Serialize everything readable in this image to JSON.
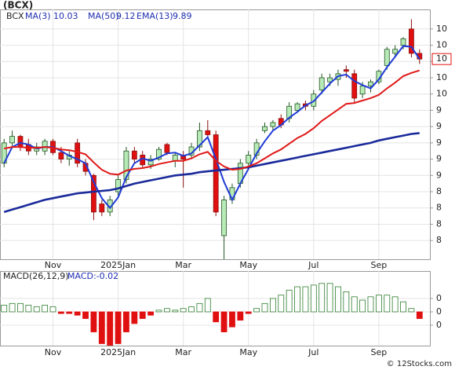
{
  "chart_data": [
    {
      "type": "candlestick",
      "title": "(BCX)",
      "ticker": "BCX",
      "categories": [
        null,
        null,
        null,
        null,
        null,
        null,
        "Nov",
        null,
        null,
        null,
        null,
        null,
        null,
        null,
        "2025Jan",
        null,
        null,
        null,
        null,
        null,
        null,
        null,
        "Mar",
        null,
        null,
        null,
        null,
        null,
        null,
        null,
        "May",
        null,
        null,
        null,
        null,
        null,
        null,
        null,
        "Jul",
        null,
        null,
        null,
        null,
        null,
        null,
        null,
        "Sep",
        null,
        null,
        null,
        null,
        null
      ],
      "open": [
        8.75,
        9.0,
        9.08,
        8.98,
        8.9,
        8.9,
        9.02,
        8.88,
        8.8,
        9.0,
        8.75,
        8.6,
        8.25,
        8.15,
        8.4,
        8.55,
        8.9,
        8.85,
        8.73,
        8.8,
        8.98,
        8.78,
        8.85,
        8.85,
        8.95,
        9.15,
        9.1,
        7.86,
        8.3,
        8.5,
        8.75,
        8.85,
        9.15,
        9.2,
        9.3,
        9.3,
        9.4,
        9.48,
        9.45,
        9.65,
        9.75,
        9.78,
        9.9,
        9.85,
        9.6,
        9.7,
        9.75,
        9.95,
        10.1,
        10.2,
        10.4,
        10.1
      ],
      "high": [
        9.05,
        9.15,
        9.1,
        9.05,
        9.0,
        9.05,
        9.05,
        8.95,
        8.9,
        9.05,
        8.8,
        8.62,
        8.3,
        8.35,
        8.6,
        8.95,
        8.95,
        8.9,
        8.85,
        8.95,
        9.0,
        8.88,
        8.9,
        9.0,
        9.25,
        9.28,
        9.15,
        8.35,
        8.5,
        8.8,
        8.9,
        9.05,
        9.25,
        9.28,
        9.35,
        9.5,
        9.5,
        9.52,
        9.65,
        9.85,
        9.85,
        9.9,
        9.95,
        9.9,
        9.75,
        9.78,
        9.9,
        10.18,
        10.2,
        10.3,
        10.52,
        10.15
      ],
      "low": [
        8.7,
        8.95,
        8.9,
        8.85,
        8.85,
        8.85,
        8.85,
        8.75,
        8.72,
        8.7,
        8.6,
        8.05,
        8.1,
        8.1,
        8.35,
        8.5,
        8.75,
        8.7,
        8.68,
        8.78,
        8.85,
        8.7,
        8.45,
        8.8,
        8.9,
        9.05,
        8.1,
        7.57,
        8.25,
        8.45,
        8.7,
        8.8,
        9.12,
        9.15,
        9.18,
        9.25,
        9.38,
        9.4,
        9.4,
        9.6,
        9.7,
        9.7,
        9.8,
        9.5,
        9.55,
        9.62,
        9.72,
        9.9,
        10.05,
        10.15,
        10.05,
        9.97
      ],
      "close": [
        9.0,
        9.08,
        8.95,
        8.9,
        8.95,
        9.02,
        8.88,
        8.8,
        8.85,
        8.75,
        8.65,
        8.15,
        8.15,
        8.3,
        8.55,
        8.9,
        8.8,
        8.73,
        8.8,
        8.92,
        8.88,
        8.85,
        8.8,
        8.95,
        9.15,
        9.1,
        8.15,
        8.3,
        8.45,
        8.75,
        8.85,
        9.0,
        9.2,
        9.25,
        9.22,
        9.45,
        9.48,
        9.45,
        9.6,
        9.8,
        9.8,
        9.85,
        9.88,
        9.55,
        9.7,
        9.75,
        9.88,
        10.15,
        10.15,
        10.28,
        10.1,
        10.03
      ],
      "up_color": "#2e9a2e",
      "down_color": "#e01010",
      "series": [
        {
          "name": "MA(3)",
          "color": "#1f3bd6",
          "values": [
            8.75,
            8.95,
            9.0,
            8.98,
            8.93,
            8.95,
            8.95,
            8.9,
            8.84,
            8.8,
            8.75,
            8.52,
            8.32,
            8.2,
            8.33,
            8.58,
            8.75,
            8.81,
            8.78,
            8.82,
            8.87,
            8.88,
            8.84,
            8.87,
            8.97,
            9.07,
            8.8,
            8.52,
            8.3,
            8.5,
            8.68,
            8.87,
            9.02,
            9.15,
            9.22,
            9.31,
            9.38,
            9.46,
            9.51,
            9.62,
            9.73,
            9.82,
            9.84,
            9.76,
            9.71,
            9.67,
            9.78,
            9.93,
            10.06,
            10.19,
            10.18,
            10.03
          ]
        },
        {
          "name": "MA(50)",
          "color": "#1a2a9a",
          "values": [
            8.15,
            8.18,
            8.21,
            8.24,
            8.27,
            8.3,
            8.32,
            8.34,
            8.36,
            8.38,
            8.39,
            8.4,
            8.41,
            8.42,
            8.44,
            8.47,
            8.5,
            8.52,
            8.54,
            8.56,
            8.58,
            8.6,
            8.61,
            8.62,
            8.64,
            8.65,
            8.66,
            8.67,
            8.68,
            8.69,
            8.7,
            8.72,
            8.74,
            8.76,
            8.78,
            8.8,
            8.82,
            8.84,
            8.86,
            8.88,
            8.9,
            8.92,
            8.94,
            8.96,
            8.98,
            9.0,
            9.03,
            9.05,
            9.07,
            9.09,
            9.11,
            9.12
          ]
        },
        {
          "name": "EMA(13)",
          "color": "#e01818",
          "values": [
            8.93,
            8.95,
            8.95,
            8.94,
            8.94,
            8.95,
            8.94,
            8.92,
            8.91,
            8.89,
            8.86,
            8.76,
            8.67,
            8.62,
            8.61,
            8.66,
            8.68,
            8.69,
            8.71,
            8.74,
            8.76,
            8.78,
            8.78,
            8.81,
            8.86,
            8.89,
            8.78,
            8.71,
            8.67,
            8.68,
            8.71,
            8.75,
            8.81,
            8.87,
            8.92,
            8.99,
            9.06,
            9.11,
            9.18,
            9.27,
            9.34,
            9.41,
            9.48,
            9.49,
            9.52,
            9.55,
            9.59,
            9.67,
            9.74,
            9.82,
            9.86,
            9.89
          ]
        }
      ],
      "ylim": [
        7.57,
        10.64
      ],
      "yticks": [
        {
          "value": 10.4,
          "label": "10"
        },
        {
          "value": 10.2,
          "label": "10"
        },
        {
          "value": 10.0,
          "label": "10"
        },
        {
          "value": 9.8,
          "label": "10"
        },
        {
          "value": 9.6,
          "label": "10"
        },
        {
          "value": 9.4,
          "label": "9"
        },
        {
          "value": 9.2,
          "label": "9"
        },
        {
          "value": 9.0,
          "label": "9"
        },
        {
          "value": 8.8,
          "label": "9"
        },
        {
          "value": 8.6,
          "label": "9"
        },
        {
          "value": 8.4,
          "label": "8"
        },
        {
          "value": 8.2,
          "label": "8"
        },
        {
          "value": 8.0,
          "label": "8"
        },
        {
          "value": 7.8,
          "label": "8"
        }
      ],
      "last_price": {
        "value": 10.03,
        "label": "10"
      },
      "grid": true
    },
    {
      "type": "bar",
      "title": "MACD(26,12,9)",
      "subtitle": "MACD:-0.02",
      "categories": [
        null,
        null,
        null,
        null,
        null,
        null,
        "Nov",
        null,
        null,
        null,
        null,
        null,
        null,
        null,
        "2025Jan",
        null,
        null,
        null,
        null,
        null,
        null,
        null,
        "Mar",
        null,
        null,
        null,
        null,
        null,
        null,
        null,
        "May",
        null,
        null,
        null,
        null,
        null,
        null,
        null,
        "Jul",
        null,
        null,
        null,
        null,
        null,
        null,
        null,
        "Sep",
        null,
        null,
        null,
        null,
        null
      ],
      "values": [
        0.02,
        0.025,
        0.025,
        0.02,
        0.015,
        0.02,
        0.015,
        -0.005,
        -0.005,
        -0.01,
        -0.02,
        -0.06,
        -0.095,
        -0.1,
        -0.095,
        -0.06,
        -0.035,
        -0.02,
        -0.01,
        0.005,
        0.01,
        0.005,
        0.01,
        0.015,
        0.025,
        0.04,
        -0.03,
        -0.06,
        -0.045,
        -0.025,
        -0.005,
        0.01,
        0.025,
        0.04,
        0.05,
        0.065,
        0.075,
        0.075,
        0.08,
        0.085,
        0.085,
        0.075,
        0.06,
        0.045,
        0.035,
        0.045,
        0.05,
        0.05,
        0.045,
        0.03,
        0.01,
        -0.02
      ],
      "up_color": "#2e7d2e",
      "down_color": "#e01010",
      "ylim": [
        -0.101,
        0.122
      ],
      "yticks": [
        {
          "value": 0.04,
          "label": "0"
        },
        0,
        {
          "value": -0.04,
          "label": "0"
        }
      ],
      "grid": true
    }
  ],
  "watermark": "© 12Stocks.com"
}
